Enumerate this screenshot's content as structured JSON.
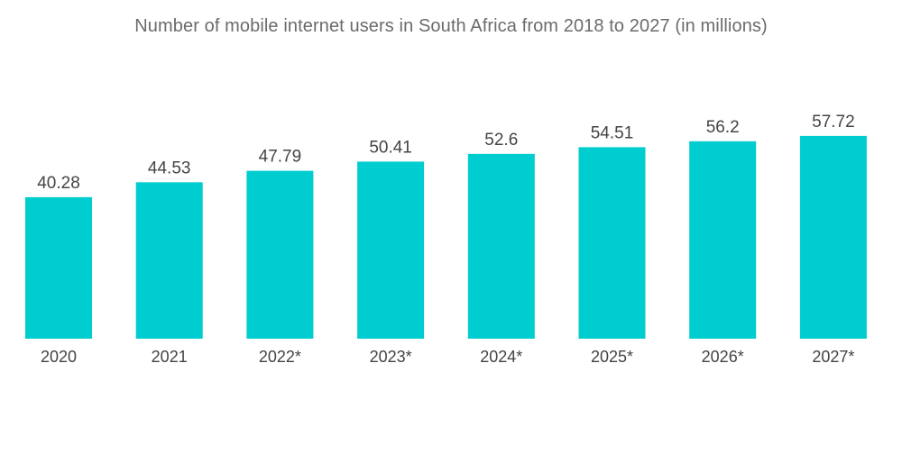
{
  "chart_data": {
    "type": "bar",
    "title": "Number of mobile internet users in South Africa from 2018 to 2027 (in millions)",
    "xlabel": "",
    "ylabel": "",
    "categories": [
      "2020",
      "2021",
      "2022*",
      "2023*",
      "2024*",
      "2025*",
      "2026*",
      "2027*"
    ],
    "values": [
      40.28,
      44.53,
      47.79,
      50.41,
      52.6,
      54.51,
      56.2,
      57.72
    ],
    "value_labels": [
      "40.28",
      "44.53",
      "47.79",
      "50.41",
      "52.6",
      "54.51",
      "56.2",
      "57.72"
    ],
    "ylim": [
      0,
      60
    ],
    "grid": false,
    "legend": "none",
    "bar_color": "#00CDD0"
  }
}
